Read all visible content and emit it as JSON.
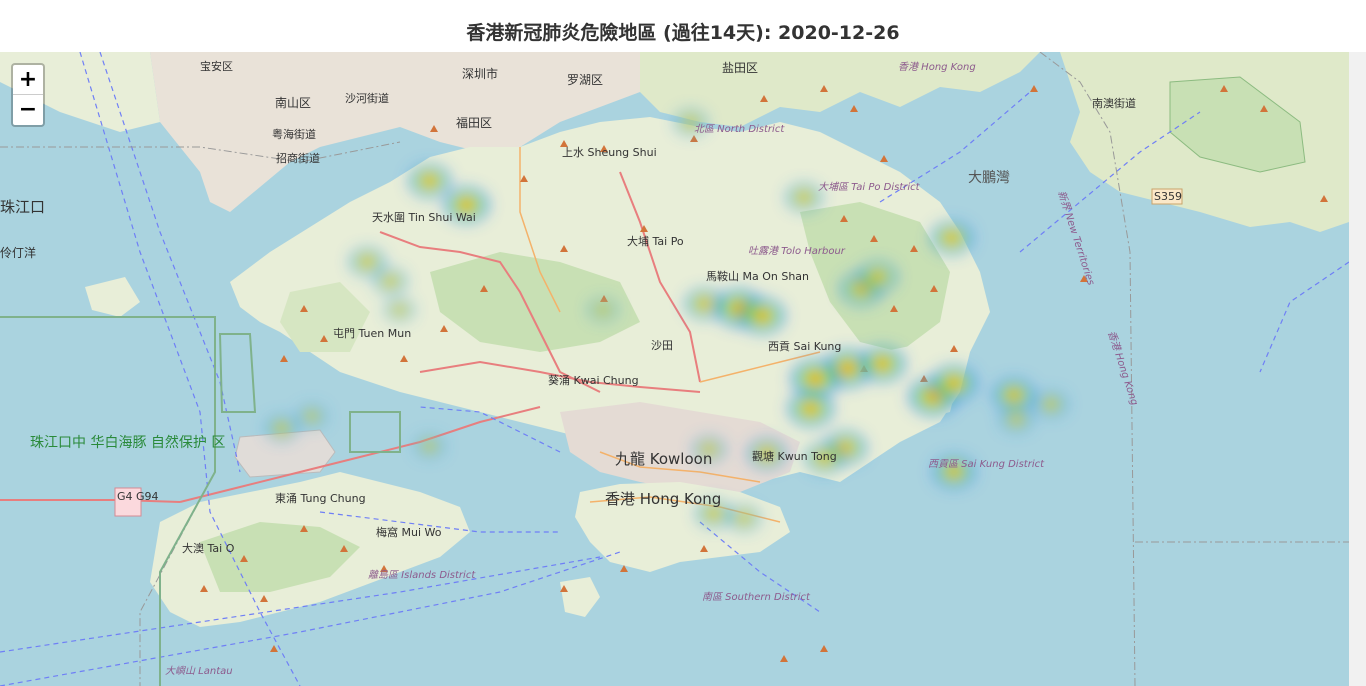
{
  "title": "香港新冠肺炎危險地區 (過往14天): 2020-12-26",
  "zoom": {
    "in_label": "+",
    "out_label": "−"
  },
  "labels": {
    "baoan": "宝安区",
    "nanshan": "南山区",
    "shekou": "沙河街道",
    "yuehai": "粤海街道",
    "zhaoshang": "招商街道",
    "futian": "福田区",
    "shenzhen": "深圳市",
    "luohu": "罗湖区",
    "yantian": "盐田区",
    "nanao": "南澳街道",
    "zhujiangkou": "珠江口",
    "lingdingyang": "伶仃洋",
    "dapengwan": "大鵬灣",
    "tinshuiwai": "天水圍 Tin Shui Wai",
    "tuenmun": "屯門 Tuen Mun",
    "sheungshui": "上水 Sheung Shui",
    "taipo": "大埔 Tai Po",
    "maonshan": "馬鞍山 Ma On Shan",
    "shatin": "沙田",
    "kwaichung": "葵涌 Kwai Chung",
    "kowloon": "九龍 Kowloon",
    "hongkong": "香港 Hong Kong",
    "kwuntong": "觀塘 Kwun Tong",
    "saikung": "西貢 Sai Kung",
    "tungchung": "東涌 Tung Chung",
    "muiwo": "梅窩 Mui Wo",
    "taio": "大澳 Tai O",
    "north": "北區 North District",
    "taipodist": "大埔區 Tai Po District",
    "tolo": "吐露港 Tolo Harbour",
    "saikungdist": "西貢區 Sai Kung District",
    "islands": "離島區 Islands District",
    "southern": "南區 Southern District",
    "hk_top": "香港 Hong Kong",
    "newterr": "新界 New Territories",
    "hk_side": "香港 Hong Kong",
    "dolphin": "珠江口中 华白海豚 自然保护 区",
    "s359": "S359",
    "g4": "G4 G94",
    "lantau": "大嶼山 Lantau"
  },
  "heatmap_points": [
    {
      "lon": 114.004,
      "lat": 22.462,
      "w": 0.8
    },
    {
      "lon": 114.02,
      "lat": 22.446,
      "w": 0.9
    },
    {
      "lon": 113.977,
      "lat": 22.408,
      "w": 0.6
    },
    {
      "lon": 113.987,
      "lat": 22.395,
      "w": 0.5
    },
    {
      "lon": 113.991,
      "lat": 22.376,
      "w": 0.4
    },
    {
      "lon": 114.079,
      "lat": 22.376,
      "w": 0.4
    },
    {
      "lon": 114.123,
      "lat": 22.38,
      "w": 0.7
    },
    {
      "lon": 114.138,
      "lat": 22.377,
      "w": 1.0
    },
    {
      "lon": 114.148,
      "lat": 22.372,
      "w": 0.9
    },
    {
      "lon": 114.191,
      "lat": 22.39,
      "w": 0.8
    },
    {
      "lon": 114.198,
      "lat": 22.398,
      "w": 0.7
    },
    {
      "lon": 114.23,
      "lat": 22.424,
      "w": 0.8
    },
    {
      "lon": 114.166,
      "lat": 22.451,
      "w": 0.6
    },
    {
      "lon": 114.117,
      "lat": 22.501,
      "w": 0.5
    },
    {
      "lon": 114.185,
      "lat": 22.337,
      "w": 1.0
    },
    {
      "lon": 114.171,
      "lat": 22.33,
      "w": 1.0
    },
    {
      "lon": 114.2,
      "lat": 22.34,
      "w": 0.9
    },
    {
      "lon": 114.222,
      "lat": 22.318,
      "w": 1.0
    },
    {
      "lon": 114.231,
      "lat": 22.327,
      "w": 0.9
    },
    {
      "lon": 114.257,
      "lat": 22.319,
      "w": 0.8
    },
    {
      "lon": 114.258,
      "lat": 22.303,
      "w": 0.5
    },
    {
      "lon": 114.273,
      "lat": 22.313,
      "w": 0.5
    },
    {
      "lon": 114.184,
      "lat": 22.284,
      "w": 0.8
    },
    {
      "lon": 114.175,
      "lat": 22.277,
      "w": 0.7
    },
    {
      "lon": 114.15,
      "lat": 22.28,
      "w": 0.7
    },
    {
      "lon": 114.125,
      "lat": 22.283,
      "w": 0.5
    },
    {
      "lon": 114.231,
      "lat": 22.268,
      "w": 0.8
    },
    {
      "lon": 114.127,
      "lat": 22.24,
      "w": 0.6
    },
    {
      "lon": 114.14,
      "lat": 22.237,
      "w": 0.5
    },
    {
      "lon": 113.94,
      "lat": 22.297,
      "w": 0.5
    },
    {
      "lon": 113.953,
      "lat": 22.305,
      "w": 0.4
    },
    {
      "lon": 114.004,
      "lat": 22.285,
      "w": 0.4
    },
    {
      "lon": 114.169,
      "lat": 22.31,
      "w": 0.9
    }
  ]
}
